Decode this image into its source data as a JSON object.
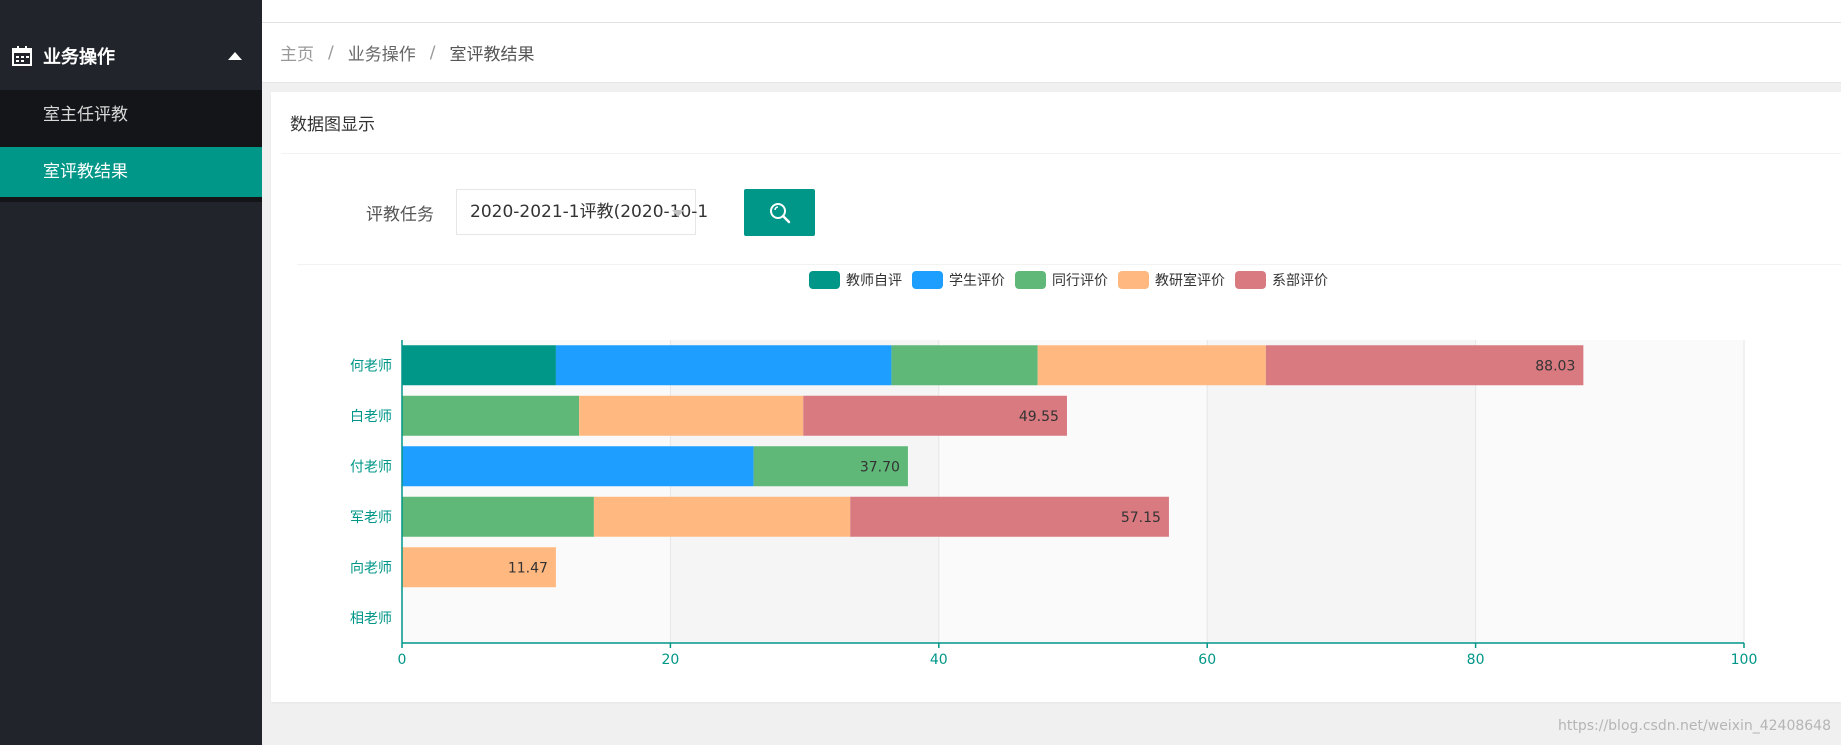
{
  "sidebar": {
    "group_title": "业务操作",
    "items": [
      {
        "label": "室主任评教"
      },
      {
        "label": "室评教结果"
      }
    ]
  },
  "breadcrumb": {
    "home": "主页",
    "section": "业务操作",
    "current": "室评教结果",
    "separator": "/"
  },
  "card": {
    "title": "数据图显示"
  },
  "form": {
    "task_label": "评教任务",
    "task_value": "2020-2021-1评教(2020-10-1"
  },
  "colors": {
    "primary": "#009688",
    "sidebar_bg": "#21252b"
  },
  "chart_data": {
    "type": "bar",
    "orientation": "horizontal",
    "stacked": true,
    "categories": [
      "相老师",
      "向老师",
      "军老师",
      "付老师",
      "白老师",
      "何老师"
    ],
    "series": [
      {
        "name": "教师自评",
        "color": "#009688",
        "values": [
          0,
          0,
          0,
          0,
          0,
          11.47
        ]
      },
      {
        "name": "学生评价",
        "color": "#1e9fff",
        "values": [
          0,
          0,
          0,
          26.2,
          0,
          25.0
        ]
      },
      {
        "name": "同行评价",
        "color": "#5fb878",
        "values": [
          0,
          0,
          14.3,
          11.5,
          13.2,
          10.9
        ]
      },
      {
        "name": "教研室评价",
        "color": "#ffb980",
        "values": [
          0,
          11.47,
          19.1,
          0,
          16.7,
          17.0
        ]
      },
      {
        "name": "系部评价",
        "color": "#d87a80",
        "values": [
          0,
          0,
          23.75,
          0,
          19.65,
          23.66
        ]
      }
    ],
    "totals": [
      "",
      "11.47",
      "57.15",
      "37.70",
      "49.55",
      "88.03"
    ],
    "xlim": [
      0,
      100
    ],
    "xticks": [
      "0",
      "20",
      "40",
      "60",
      "80",
      "100"
    ],
    "legend_position": "top"
  },
  "watermark": "https://blog.csdn.net/weixin_42408648"
}
